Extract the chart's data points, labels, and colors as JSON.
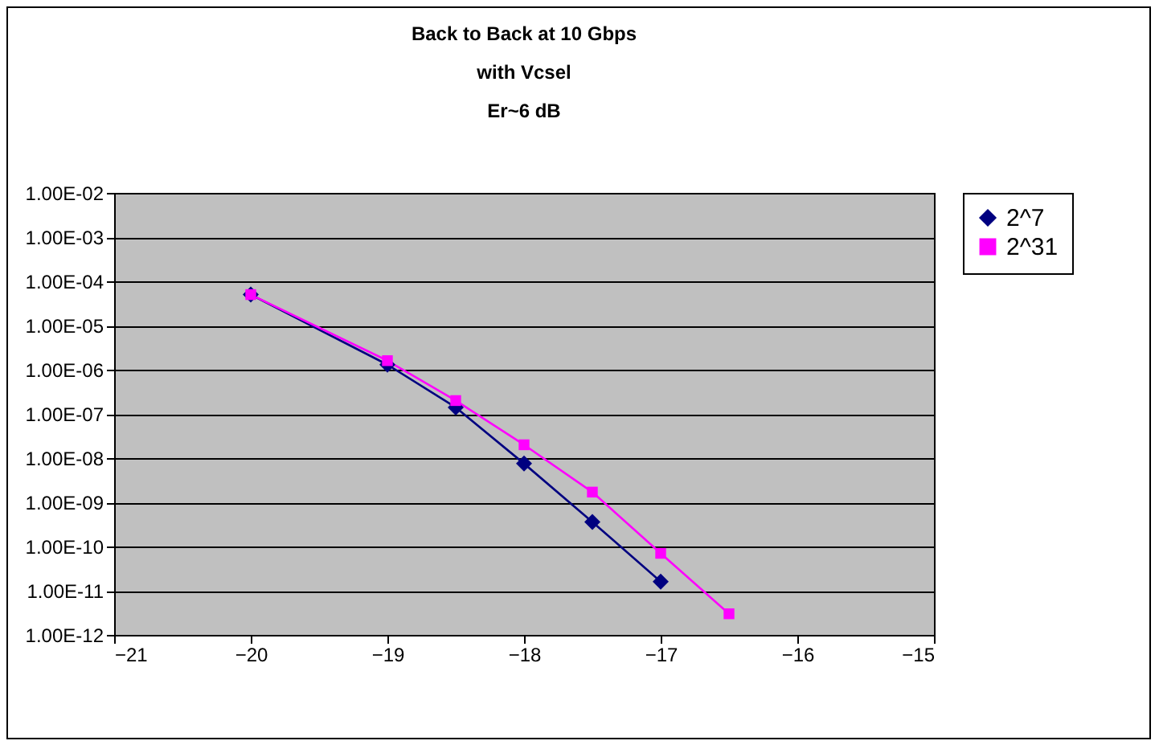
{
  "chart_data": {
    "type": "line",
    "title": "Back to Back at 10 Gbps\nwith Vcsel\nEr~6 dB",
    "log": "y",
    "grid": "y",
    "legend": "right",
    "xlim": [
      -21,
      -15
    ],
    "xticks": [
      -21,
      -20,
      -19,
      -18,
      -17,
      -16,
      -15
    ],
    "ylim": [
      1e-12,
      0.01
    ],
    "yticks": [
      {
        "value": 0.01,
        "label": "1.00E-02"
      },
      {
        "value": 0.001,
        "label": "1.00E-03"
      },
      {
        "value": 0.0001,
        "label": "1.00E-04"
      },
      {
        "value": 1e-05,
        "label": "1.00E-05"
      },
      {
        "value": 1e-06,
        "label": "1.00E-06"
      },
      {
        "value": 1e-07,
        "label": "1.00E-07"
      },
      {
        "value": 1e-08,
        "label": "1.00E-08"
      },
      {
        "value": 1e-09,
        "label": "1.00E-09"
      },
      {
        "value": 1e-10,
        "label": "1.00E-10"
      },
      {
        "value": 1e-11,
        "label": "1.00E-11"
      },
      {
        "value": 1e-12,
        "label": "1.00E-12"
      }
    ],
    "series": [
      {
        "name": "2^7",
        "color": "#000080",
        "marker": "diamond",
        "x": [
          -20,
          -19,
          -18.5,
          -18,
          -17.5,
          -17
        ],
        "values": [
          5e-05,
          1.3e-06,
          1.4e-07,
          7.5e-09,
          3.6e-10,
          1.6e-11
        ]
      },
      {
        "name": "2^31",
        "color": "#ff00ff",
        "marker": "square",
        "x": [
          -20,
          -19,
          -18.5,
          -18,
          -17.5,
          -17,
          -16.5
        ],
        "values": [
          5e-05,
          1.6e-06,
          2e-07,
          2e-08,
          1.7e-09,
          7e-11,
          3e-12
        ]
      }
    ]
  }
}
